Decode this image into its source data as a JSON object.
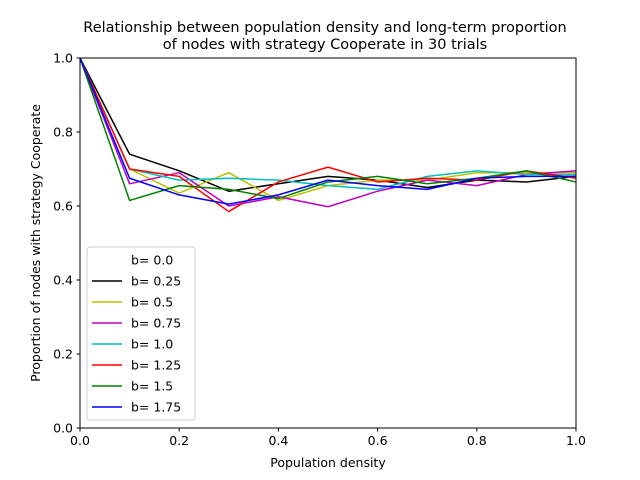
{
  "chart_data": {
    "type": "line",
    "title": "Relationship between population density and long-term proportion\nof nodes with strategy Cooperate in 30 trials",
    "title_lines": [
      "Relationship between population density and long-term proportion",
      "of nodes with strategy Cooperate in 30 trials"
    ],
    "xlabel": "Population density",
    "ylabel": "Proportion of nodes with strategy Cooperate",
    "xlim": [
      0.0,
      1.0
    ],
    "ylim": [
      0.0,
      1.0
    ],
    "xticks": [
      0.0,
      0.2,
      0.4,
      0.6,
      0.8,
      1.0
    ],
    "xtick_labels": [
      "0.0",
      "0.2",
      "0.4",
      "0.6",
      "0.8",
      "1.0"
    ],
    "yticks": [
      0.0,
      0.2,
      0.4,
      0.6,
      0.8,
      1.0
    ],
    "ytick_labels": [
      "0.0",
      "0.2",
      "0.4",
      "0.6",
      "0.8",
      "1.0"
    ],
    "grid": false,
    "legend_position": "lower-left",
    "x": [
      0.0,
      0.1,
      0.2,
      0.3,
      0.4,
      0.5,
      0.6,
      0.7,
      0.8,
      0.9,
      1.0
    ],
    "series": [
      {
        "name": "b= 0.0",
        "color": "#ffffff",
        "values": [
          1.0,
          0.7,
          0.69,
          0.64,
          0.66,
          0.68,
          0.67,
          0.66,
          0.67,
          0.69,
          0.68
        ]
      },
      {
        "name": "b= 0.25",
        "color": "#000000",
        "values": [
          1.0,
          0.74,
          0.695,
          0.64,
          0.66,
          0.68,
          0.67,
          0.65,
          0.67,
          0.665,
          0.68
        ]
      },
      {
        "name": "b= 0.5",
        "color": "#bfbf00",
        "values": [
          1.0,
          0.7,
          0.635,
          0.69,
          0.615,
          0.655,
          0.67,
          0.67,
          0.69,
          0.69,
          0.69
        ]
      },
      {
        "name": "b= 0.75",
        "color": "#bf00bf",
        "values": [
          1.0,
          0.66,
          0.69,
          0.6,
          0.625,
          0.598,
          0.64,
          0.67,
          0.655,
          0.685,
          0.695
        ]
      },
      {
        "name": "b= 1.0",
        "color": "#00bfbf",
        "values": [
          1.0,
          0.7,
          0.67,
          0.675,
          0.67,
          0.655,
          0.645,
          0.68,
          0.695,
          0.685,
          0.685
        ]
      },
      {
        "name": "b= 1.25",
        "color": "#ff0000",
        "values": [
          1.0,
          0.7,
          0.68,
          0.585,
          0.665,
          0.705,
          0.665,
          0.675,
          0.67,
          0.695,
          0.675
        ]
      },
      {
        "name": "b= 1.5",
        "color": "#008000",
        "values": [
          1.0,
          0.615,
          0.655,
          0.645,
          0.62,
          0.665,
          0.68,
          0.66,
          0.675,
          0.695,
          0.665
        ]
      },
      {
        "name": "b= 1.75",
        "color": "#0000ff",
        "values": [
          1.0,
          0.675,
          0.63,
          0.605,
          0.63,
          0.67,
          0.655,
          0.645,
          0.675,
          0.68,
          0.68
        ]
      }
    ]
  }
}
